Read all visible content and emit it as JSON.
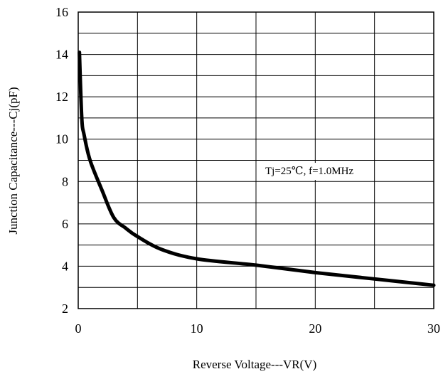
{
  "chart_data": {
    "type": "line",
    "xlabel": "Reverse Voltage---VR(V)",
    "ylabel": "Junction Capacitance---Cj(pF)",
    "xlim": [
      0,
      30
    ],
    "ylim": [
      2,
      16
    ],
    "xticks": [
      0,
      10,
      20,
      30
    ],
    "yticks": [
      2,
      4,
      6,
      8,
      10,
      12,
      14,
      16
    ],
    "x_minor_gridlines": [
      5,
      15,
      25
    ],
    "y_minor_gridlines": [
      3,
      5,
      7,
      9,
      11,
      13,
      15
    ],
    "grid": true,
    "annotation": "Tj=25℃, f=1.0MHz",
    "series": [
      {
        "x": [
          0.1,
          0.3,
          0.5,
          1,
          2,
          3,
          4,
          5,
          7,
          10,
          15,
          20,
          25,
          30
        ],
        "y": [
          14.1,
          11.0,
          10.2,
          9.0,
          7.6,
          6.3,
          5.8,
          5.4,
          4.8,
          4.35,
          4.05,
          3.7,
          3.4,
          3.1
        ]
      }
    ]
  }
}
